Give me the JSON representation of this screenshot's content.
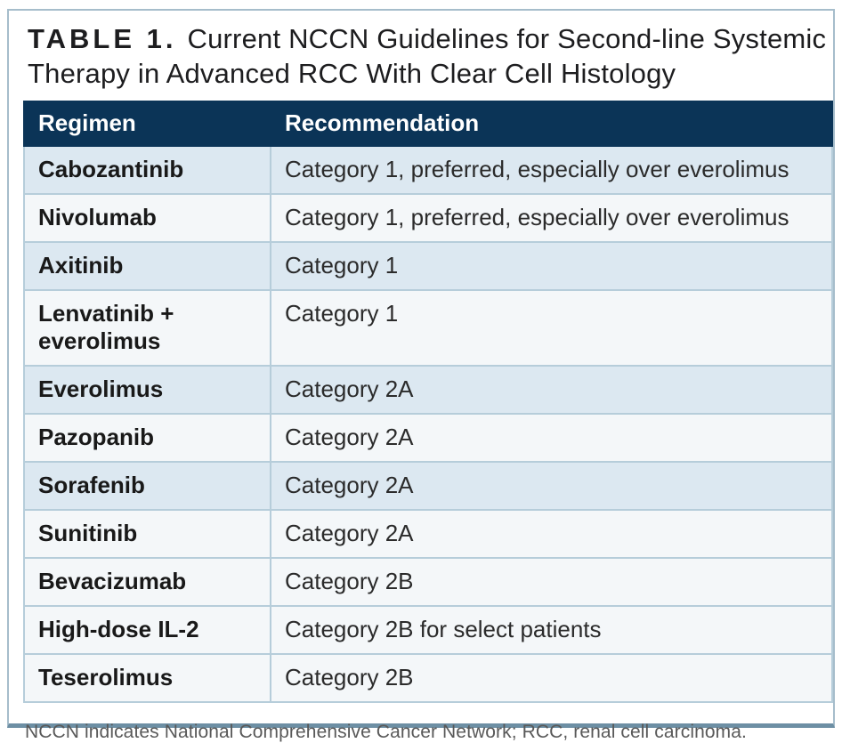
{
  "title": {
    "label": "TABLE 1.",
    "text": "Current NCCN Guidelines for Second-line Systemic Therapy in Advanced RCC With Clear Cell Histology"
  },
  "table": {
    "columns": [
      "Regimen",
      "Recommendation"
    ],
    "rows": [
      {
        "regimen": "Cabozantinib",
        "recommendation": "Category 1, preferred, especially over everolimus",
        "shaded": true
      },
      {
        "regimen": "Nivolumab",
        "recommendation": "Category 1, preferred, especially over everolimus",
        "shaded": false
      },
      {
        "regimen": "Axitinib",
        "recommendation": "Category 1",
        "shaded": true
      },
      {
        "regimen": "Lenvatinib + everolimus",
        "recommendation": "Category 1",
        "shaded": false
      },
      {
        "regimen": "Everolimus",
        "recommendation": "Category 2A",
        "shaded": true
      },
      {
        "regimen": "Pazopanib",
        "recommendation": "Category 2A",
        "shaded": false
      },
      {
        "regimen": "Sorafenib",
        "recommendation": "Category 2A",
        "shaded": true
      },
      {
        "regimen": "Sunitinib",
        "recommendation": "Category 2A",
        "shaded": false
      },
      {
        "regimen": "Bevacizumab",
        "recommendation": "Category 2B",
        "shaded": false
      },
      {
        "regimen": "High-dose IL-2",
        "recommendation": "Category 2B for select patients",
        "shaded": false
      },
      {
        "regimen": "Teserolimus",
        "recommendation": "Category 2B",
        "shaded": false
      }
    ]
  },
  "footnote": "NCCN indicates National Comprehensive Cancer Network; RCC, renal cell carcinoma.",
  "colors": {
    "header_bg": "#0b3457",
    "header_text": "#ffffff",
    "row_blue": "#dce8f1",
    "row_light": "#f4f7f9",
    "row_divider": "#b6cdda",
    "col_divider": "#9db0bf",
    "frame_border": "#a6bdcb",
    "frame_bottom": "#6d8fa4",
    "title_text": "#1d1d1f",
    "regimen_text": "#191919",
    "recommendation_text": "#2b2b2b",
    "footnote_text": "#595959"
  }
}
